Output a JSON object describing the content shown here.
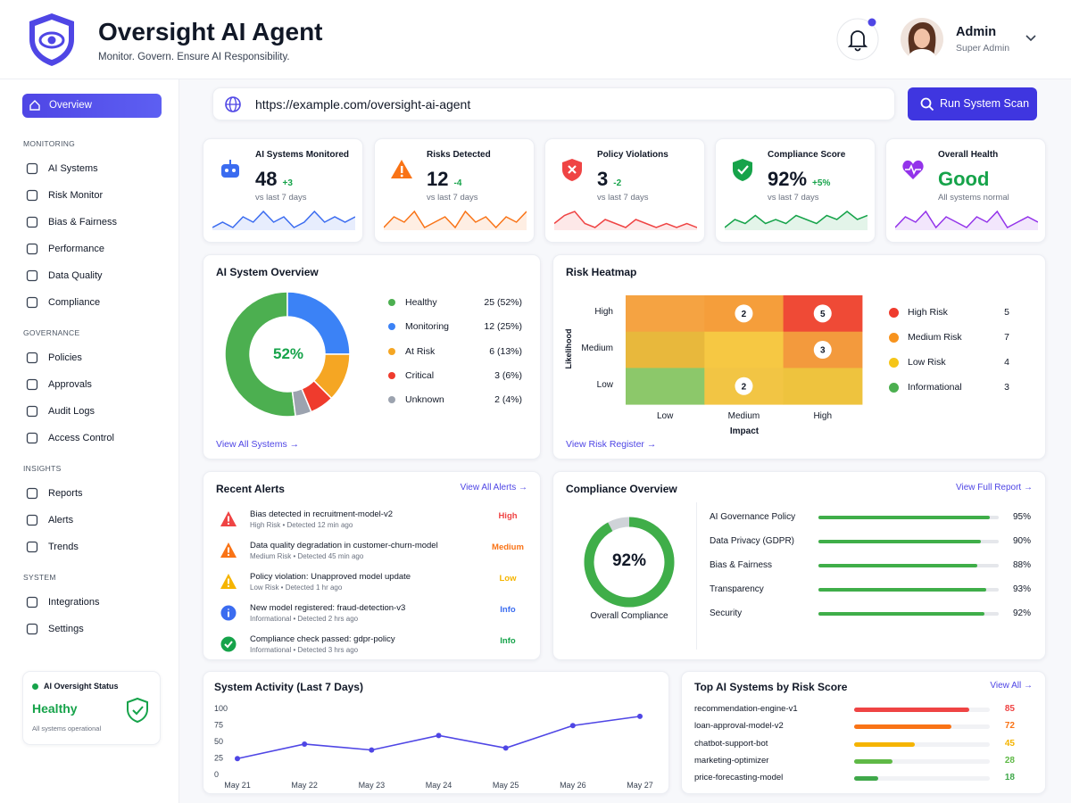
{
  "header": {
    "title": "Oversight AI Agent",
    "subtitle": "Monitor. Govern. Ensure AI Responsibility.",
    "user_name": "Admin",
    "user_role": "Super Admin"
  },
  "nav": {
    "active": "Overview",
    "sections": [
      {
        "title": "MONITORING",
        "items": [
          "AI Systems",
          "Risk Monitor",
          "Bias & Fairness",
          "Performance",
          "Data Quality",
          "Compliance"
        ]
      },
      {
        "title": "GOVERNANCE",
        "items": [
          "Policies",
          "Approvals",
          "Audit Logs",
          "Access Control"
        ]
      },
      {
        "title": "INSIGHTS",
        "items": [
          "Reports",
          "Alerts",
          "Trends"
        ]
      },
      {
        "title": "SYSTEM",
        "items": [
          "Integrations",
          "Settings"
        ]
      }
    ]
  },
  "status_card": {
    "title": "AI Oversight Status",
    "value": "Healthy",
    "note": "All systems operational"
  },
  "url": "https://example.com/oversight-ai-agent",
  "scan_button": "Run System Scan",
  "kpis": [
    {
      "label": "AI Systems Monitored",
      "value": "48",
      "delta": "+3",
      "note": "vs last 7 days",
      "color": "#3b6cf0",
      "value_color": "#111827",
      "spark": [
        3,
        4,
        3,
        5,
        4,
        6,
        4,
        5,
        3,
        4,
        6,
        4,
        5,
        4,
        5
      ]
    },
    {
      "label": "Risks Detected",
      "value": "12",
      "delta": "-4",
      "note": "vs last 7 days",
      "color": "#f97316",
      "value_color": "#111827",
      "spark": [
        3,
        5,
        4,
        6,
        3,
        4,
        5,
        3,
        6,
        4,
        5,
        3,
        5,
        4,
        6
      ]
    },
    {
      "label": "Policy Violations",
      "value": "3",
      "delta": "-2",
      "note": "vs last 7 days",
      "color": "#ef4444",
      "value_color": "#111827",
      "spark": [
        4,
        6,
        7,
        4,
        3,
        5,
        4,
        3,
        5,
        4,
        3,
        4,
        3,
        4,
        3
      ]
    },
    {
      "label": "Compliance Score",
      "value": "92%",
      "delta": "+5%",
      "note": "vs last 7 days",
      "color": "#16a34a",
      "value_color": "#111827",
      "spark": [
        3,
        5,
        4,
        6,
        4,
        5,
        4,
        6,
        5,
        4,
        6,
        5,
        7,
        5,
        6
      ]
    },
    {
      "label": "Overall Health",
      "value": "Good",
      "note": "All systems normal",
      "color": "#9333ea",
      "value_color": "#16a34a",
      "spark": [
        4,
        6,
        5,
        7,
        4,
        6,
        5,
        4,
        6,
        5,
        7,
        4,
        5,
        6,
        5
      ]
    }
  ],
  "ai_overview": {
    "title": "AI System Overview",
    "center": "52%",
    "link": "View All Systems →",
    "segments": [
      {
        "name": "Healthy",
        "value": 25,
        "label": "25 (52%)",
        "color": "#4caf50"
      },
      {
        "name": "Monitoring",
        "value": 12,
        "label": "12 (25%)",
        "color": "#3b82f6"
      },
      {
        "name": "At Risk",
        "value": 6,
        "label": "6 (13%)",
        "color": "#f5a623"
      },
      {
        "name": "Critical",
        "value": 3,
        "label": "3 (6%)",
        "color": "#ef3b2d"
      },
      {
        "name": "Unknown",
        "value": 2,
        "label": "2 (4%)",
        "color": "#9ca3af"
      }
    ]
  },
  "heatmap": {
    "title": "Risk Heatmap",
    "y_label": "Likelihood",
    "x_label": "Impact",
    "link": "View Risk Register →",
    "rows": [
      "High",
      "Medium",
      "Low"
    ],
    "cols": [
      "Low",
      "Medium",
      "High"
    ],
    "values": [
      [
        null,
        2,
        5
      ],
      [
        null,
        null,
        3
      ],
      [
        null,
        2,
        null
      ]
    ],
    "colors": [
      [
        "#f5a342",
        "#f59e3b",
        "#ef4a36"
      ],
      [
        "#e8b83c",
        "#f6c843",
        "#f39a3d"
      ],
      [
        "#8cc86a",
        "#f2c544",
        "#eec33e"
      ]
    ],
    "legend": [
      {
        "name": "High Risk",
        "value": 5,
        "color": "#ef3b2d"
      },
      {
        "name": "Medium Risk",
        "value": 7,
        "color": "#f7931e"
      },
      {
        "name": "Low Risk",
        "value": 4,
        "color": "#f5c518"
      },
      {
        "name": "Informational",
        "value": 3,
        "color": "#4caf50"
      }
    ]
  },
  "alerts": {
    "title": "Recent Alerts",
    "link": "View All Alerts →",
    "items": [
      {
        "title": "Bias detected in recruitment-model-v2",
        "meta": "High Risk • Detected 12 min ago",
        "level": "High",
        "color": "#ef4444"
      },
      {
        "title": "Data quality degradation in customer-churn-model",
        "meta": "Medium Risk • Detected 45 min ago",
        "level": "Medium",
        "color": "#f97316"
      },
      {
        "title": "Policy violation: Unapproved model update",
        "meta": "Low Risk • Detected 1 hr ago",
        "level": "Low",
        "color": "#f5b400"
      },
      {
        "title": "New model registered: fraud-detection-v3",
        "meta": "Informational • Detected 2 hrs ago",
        "level": "Info",
        "color": "#3b6cf0"
      },
      {
        "title": "Compliance check passed: gdpr-policy",
        "meta": "Informational • Detected 3 hrs ago",
        "level": "Info",
        "color": "#16a34a"
      }
    ]
  },
  "compliance": {
    "title": "Compliance Overview",
    "link": "View Full Report →",
    "score": 92,
    "score_label": "92%",
    "caption": "Overall Compliance",
    "items": [
      {
        "name": "AI Governance Policy",
        "value": 95,
        "label": "95%"
      },
      {
        "name": "Data Privacy (GDPR)",
        "value": 90,
        "label": "90%"
      },
      {
        "name": "Bias & Fairness",
        "value": 88,
        "label": "88%"
      },
      {
        "name": "Transparency",
        "value": 93,
        "label": "93%"
      },
      {
        "name": "Security",
        "value": 92,
        "label": "92%"
      }
    ]
  },
  "chart_data": {
    "type": "line",
    "title": "System Activity (Last 7 Days)",
    "categories": [
      "May 21",
      "May 22",
      "May 23",
      "May 24",
      "May 25",
      "May 26",
      "May 27"
    ],
    "values": [
      24,
      46,
      37,
      59,
      40,
      74,
      88
    ],
    "color": "#4f46e5",
    "ylim": [
      0,
      100
    ],
    "yticks": [
      0,
      25,
      50,
      75,
      100
    ]
  },
  "top_systems": {
    "title": "Top AI Systems by Risk Score",
    "link": "View All →",
    "items": [
      {
        "name": "recommendation-engine-v1",
        "value": 85,
        "color": "#ef4444"
      },
      {
        "name": "loan-approval-model-v2",
        "value": 72,
        "color": "#f97316"
      },
      {
        "name": "chatbot-support-bot",
        "value": 45,
        "color": "#f5b400"
      },
      {
        "name": "marketing-optimizer",
        "value": 28,
        "color": "#5fb946"
      },
      {
        "name": "price-forecasting-model",
        "value": 18,
        "color": "#3fa84a"
      }
    ]
  }
}
